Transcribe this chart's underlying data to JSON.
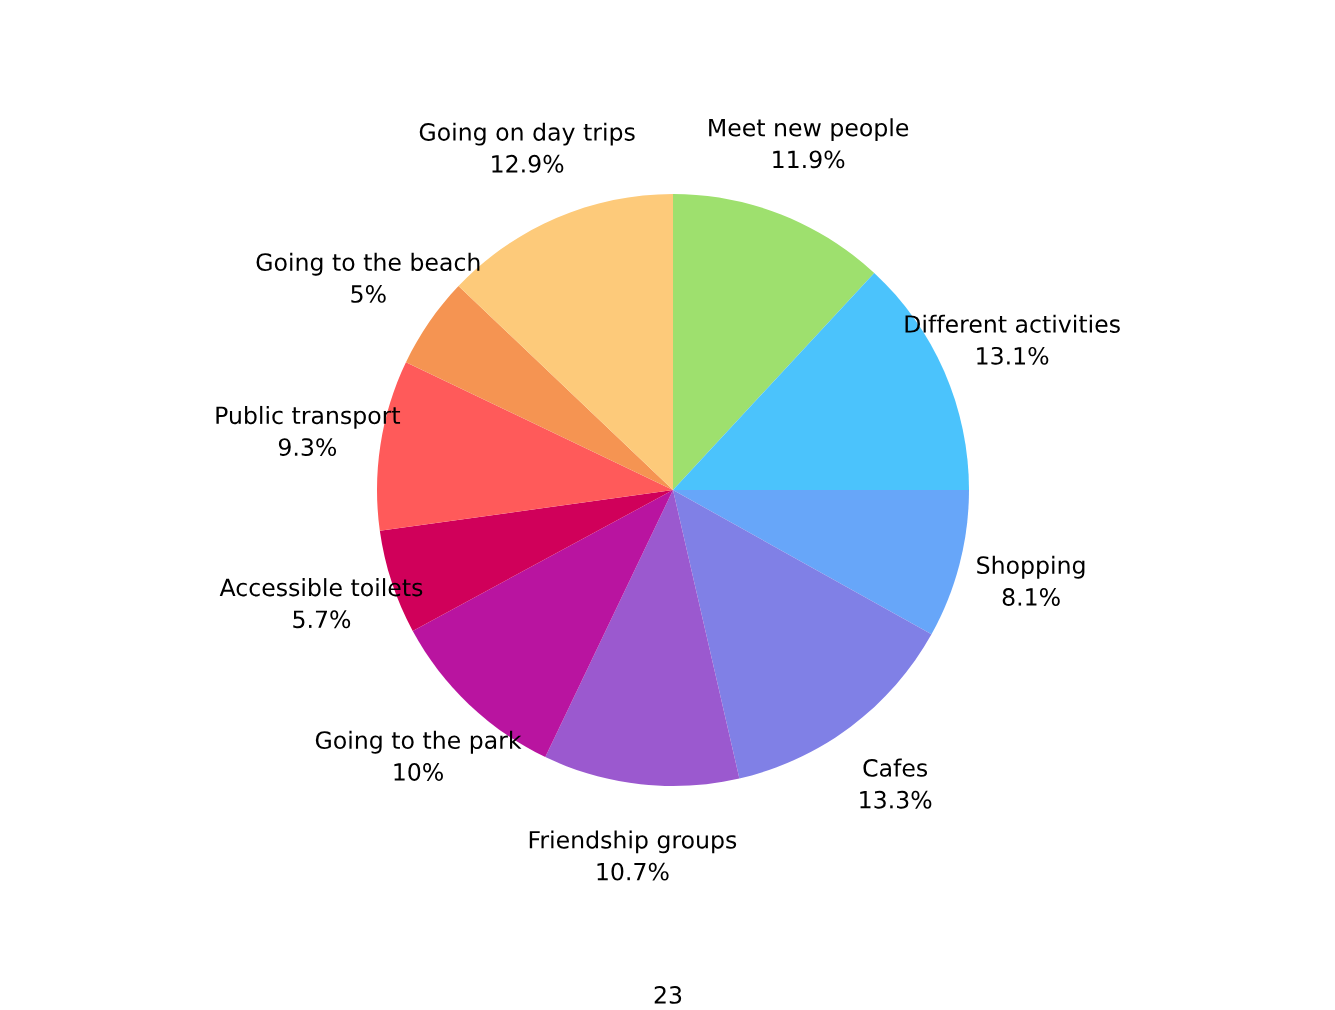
{
  "chart_data": {
    "type": "pie",
    "categories": [
      "Meet new people",
      "Different activities",
      "Shopping",
      "Cafes",
      "Friendship groups",
      "Going to the park",
      "Accessible toilets",
      "Public transport",
      "Going to the beach",
      "Going on day trips"
    ],
    "values": [
      11.9,
      13.1,
      8.1,
      13.3,
      10.7,
      10,
      5.7,
      9.3,
      5,
      12.9
    ],
    "value_labels": [
      "11.9%",
      "13.1%",
      "8.1%",
      "13.3%",
      "10.7%",
      "10%",
      "5.7%",
      "9.3%",
      "5%",
      "12.9%"
    ],
    "colors": [
      "#9ee06e",
      "#4bc3fc",
      "#67a6f9",
      "#8080e6",
      "#9b59cf",
      "#b914a0",
      "#d0005a",
      "#ff5a5a",
      "#f59452",
      "#fdca7a"
    ],
    "annotations": [
      "23"
    ]
  }
}
